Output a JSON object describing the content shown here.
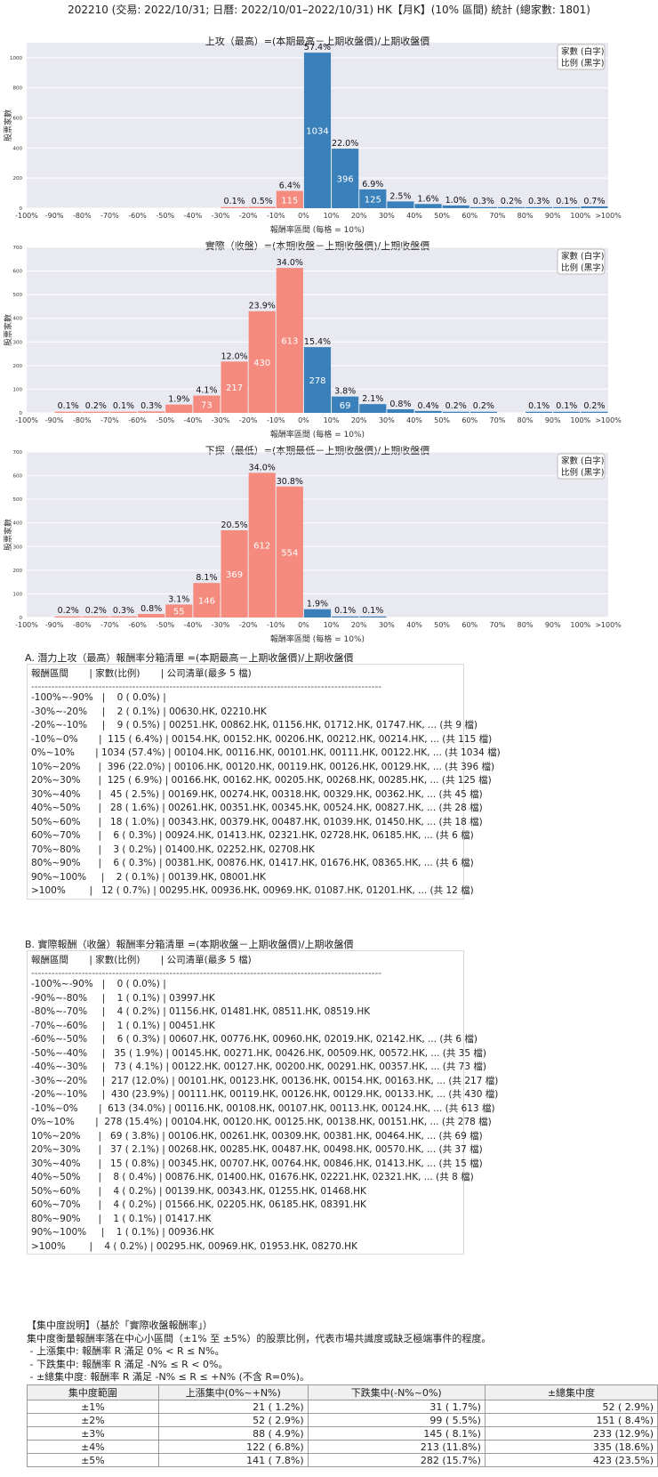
{
  "page_title": "202210 (交易: 2022/10/31; 日曆: 2022/10/01–2022/10/31) HK【月K】(10% 區間) 統計 (總家數: 1801)",
  "chart_data": [
    {
      "type": "bar",
      "title": "上攻（最高）=(本期最高－上期收盤價)/上期收盤價",
      "xlabel": "報酬率區間 (每格 = 10%)",
      "ylabel": "股票家數",
      "legend": [
        "家數 (白字)",
        "比例 (黑字)"
      ],
      "ylim": [
        0,
        1100
      ],
      "yticks": [
        0,
        200,
        400,
        600,
        800,
        1000
      ],
      "x_ticks": [
        "-100%",
        "-90%",
        "-80%",
        "-70%",
        "-60%",
        "-50%",
        "-40%",
        "-30%",
        "-20%",
        "-10%",
        "0%",
        "10%",
        "20%",
        "30%",
        "40%",
        "50%",
        "60%",
        "70%",
        "80%",
        "90%",
        "100%",
        ">100%"
      ],
      "counts": [
        0,
        0,
        0,
        0,
        0,
        0,
        0,
        2,
        9,
        115,
        1034,
        396,
        125,
        45,
        28,
        18,
        6,
        3,
        6,
        2,
        12
      ],
      "pcts": [
        "",
        "",
        "",
        "",
        "",
        "",
        "",
        "0.1%",
        "0.5%",
        "6.4%",
        "57.4%",
        "22.0%",
        "6.9%",
        "2.5%",
        "1.6%",
        "1.0%",
        "0.3%",
        "0.2%",
        "0.3%",
        "0.1%",
        "0.7%"
      ]
    },
    {
      "type": "bar",
      "title": "實際（收盤）=(本期收盤－上期收盤價)/上期收盤價",
      "xlabel": "報酬率區間 (每格 = 10%)",
      "ylabel": "股票家數",
      "legend": [
        "家數 (白字)",
        "比例 (黑字)"
      ],
      "ylim": [
        0,
        700
      ],
      "yticks": [
        0,
        100,
        200,
        300,
        400,
        500,
        600,
        700
      ],
      "x_ticks": [
        "-100%",
        "-90%",
        "-80%",
        "-70%",
        "-60%",
        "-50%",
        "-40%",
        "-30%",
        "-20%",
        "-10%",
        "0%",
        "10%",
        "20%",
        "30%",
        "40%",
        "50%",
        "60%",
        "70%",
        "80%",
        "90%",
        "100%",
        ">100%"
      ],
      "counts": [
        0,
        1,
        4,
        1,
        6,
        35,
        73,
        217,
        430,
        613,
        278,
        69,
        37,
        15,
        8,
        4,
        4,
        0,
        1,
        1,
        4
      ],
      "pcts": [
        "",
        "0.1%",
        "0.2%",
        "0.1%",
        "0.3%",
        "1.9%",
        "4.1%",
        "12.0%",
        "23.9%",
        "34.0%",
        "15.4%",
        "3.8%",
        "2.1%",
        "0.8%",
        "0.4%",
        "0.2%",
        "0.2%",
        "",
        "0.1%",
        "0.1%",
        "0.2%"
      ]
    },
    {
      "type": "bar",
      "title": "下探（最低）=(本期最低－上期收盤價)/上期收盤價",
      "xlabel": "報酬率區間 (每格 = 10%)",
      "ylabel": "股票家數",
      "legend": [
        "家數 (白字)",
        "比例 (黑字)"
      ],
      "ylim": [
        0,
        700
      ],
      "yticks": [
        0,
        100,
        200,
        300,
        400,
        500,
        600,
        700
      ],
      "x_ticks": [
        "-100%",
        "-90%",
        "-80%",
        "-70%",
        "-60%",
        "-50%",
        "-40%",
        "-30%",
        "-20%",
        "-10%",
        "0%",
        "10%",
        "20%",
        "30%",
        "40%",
        "50%",
        "60%",
        "70%",
        "80%",
        "90%",
        "100%",
        ">100%"
      ],
      "counts": [
        0,
        4,
        4,
        5,
        15,
        55,
        146,
        369,
        612,
        554,
        35,
        2,
        2,
        0,
        0,
        0,
        0,
        0,
        0,
        0,
        0
      ],
      "pcts": [
        "",
        "0.2%",
        "0.2%",
        "0.3%",
        "0.8%",
        "3.1%",
        "8.1%",
        "20.5%",
        "34.0%",
        "30.8%",
        "1.9%",
        "0.1%",
        "0.1%",
        "",
        "",
        "",
        "",
        "",
        "",
        "",
        ""
      ]
    }
  ],
  "section_a": {
    "title": "A. 潛力上攻（最高）報酬率分箱清單 =(本期最高－上期收盤價)/上期收盤價",
    "header": "報酬區間       | 家數(比例)       | 公司清單(最多 5 檔)",
    "separator": "--------------------------------------------------------------------------------------------------------",
    "rows": [
      "-100%~-90%   |    0 ( 0.0%) |",
      "-30%~-20%     |    2 ( 0.1%) | 00630.HK, 02210.HK",
      "-20%~-10%     |    9 ( 0.5%) | 00251.HK, 00862.HK, 01156.HK, 01712.HK, 01747.HK, ... (共 9 檔)",
      "-10%~0%       |  115 ( 6.4%) | 00154.HK, 00152.HK, 00206.HK, 00212.HK, 00214.HK, ... (共 115 檔)",
      "0%~10%       | 1034 (57.4%) | 00104.HK, 00116.HK, 00101.HK, 00111.HK, 00122.HK, ... (共 1034 檔)",
      "10%~20%      |  396 (22.0%) | 00106.HK, 00120.HK, 00119.HK, 00126.HK, 00129.HK, ... (共 396 檔)",
      "20%~30%      |  125 ( 6.9%) | 00166.HK, 00162.HK, 00205.HK, 00268.HK, 00285.HK, ... (共 125 檔)",
      "30%~40%      |   45 ( 2.5%) | 00169.HK, 00274.HK, 00318.HK, 00329.HK, 00362.HK, ... (共 45 檔)",
      "40%~50%      |   28 ( 1.6%) | 00261.HK, 00351.HK, 00345.HK, 00524.HK, 00827.HK, ... (共 28 檔)",
      "50%~60%      |   18 ( 1.0%) | 00343.HK, 00379.HK, 00487.HK, 01039.HK, 01450.HK, ... (共 18 檔)",
      "60%~70%      |    6 ( 0.3%) | 00924.HK, 01413.HK, 02321.HK, 02728.HK, 06185.HK, ... (共 6 檔)",
      "70%~80%      |    3 ( 0.2%) | 01400.HK, 02252.HK, 02708.HK",
      "80%~90%      |    6 ( 0.3%) | 00381.HK, 00876.HK, 01417.HK, 01676.HK, 08365.HK, ... (共 6 檔)",
      "90%~100%     |    2 ( 0.1%) | 00139.HK, 08001.HK",
      ">100%        |   12 ( 0.7%) | 00295.HK, 00936.HK, 00969.HK, 01087.HK, 01201.HK, ... (共 12 檔)"
    ]
  },
  "section_b": {
    "title": "B. 實際報酬（收盤）報酬率分箱清單 =(本期收盤－上期收盤價)/上期收盤價",
    "header": "報酬區間       | 家數(比例)       | 公司清單(最多 5 檔)",
    "separator": "--------------------------------------------------------------------------------------------------------",
    "rows": [
      "-100%~-90%   |    0 ( 0.0%) |",
      "-90%~-80%     |    1 ( 0.1%) | 03997.HK",
      "-80%~-70%     |    4 ( 0.2%) | 01156.HK, 01481.HK, 08511.HK, 08519.HK",
      "-70%~-60%     |    1 ( 0.1%) | 00451.HK",
      "-60%~-50%     |    6 ( 0.3%) | 00607.HK, 00776.HK, 00960.HK, 02019.HK, 02142.HK, ... (共 6 檔)",
      "-50%~-40%     |   35 ( 1.9%) | 00145.HK, 00271.HK, 00426.HK, 00509.HK, 00572.HK, ... (共 35 檔)",
      "-40%~-30%     |   73 ( 4.1%) | 00122.HK, 00127.HK, 00200.HK, 00291.HK, 00357.HK, ... (共 73 檔)",
      "-30%~-20%     |  217 (12.0%) | 00101.HK, 00123.HK, 00136.HK, 00154.HK, 00163.HK, ... (共 217 檔)",
      "-20%~-10%     |  430 (23.9%) | 00111.HK, 00119.HK, 00126.HK, 00129.HK, 00133.HK, ... (共 430 檔)",
      "-10%~0%       |  613 (34.0%) | 00116.HK, 00108.HK, 00107.HK, 00113.HK, 00124.HK, ... (共 613 檔)",
      "0%~10%       |  278 (15.4%) | 00104.HK, 00120.HK, 00125.HK, 00138.HK, 00151.HK, ... (共 278 檔)",
      "10%~20%      |   69 ( 3.8%) | 00106.HK, 00261.HK, 00309.HK, 00381.HK, 00464.HK, ... (共 69 檔)",
      "20%~30%      |   37 ( 2.1%) | 00268.HK, 00285.HK, 00487.HK, 00498.HK, 00570.HK, ... (共 37 檔)",
      "30%~40%      |   15 ( 0.8%) | 00345.HK, 00707.HK, 00764.HK, 00846.HK, 01413.HK, ... (共 15 檔)",
      "40%~50%      |    8 ( 0.4%) | 00876.HK, 01400.HK, 01676.HK, 02221.HK, 02321.HK, ... (共 8 檔)",
      "50%~60%      |    4 ( 0.2%) | 00139.HK, 00343.HK, 01255.HK, 01468.HK",
      "60%~70%      |    4 ( 0.2%) | 01566.HK, 02205.HK, 06185.HK, 08391.HK",
      "80%~90%      |    1 ( 0.1%) | 01417.HK",
      "90%~100%     |    1 ( 0.1%) | 00936.HK",
      ">100%        |    4 ( 0.2%) | 00295.HK, 00969.HK, 01953.HK, 08270.HK"
    ]
  },
  "concentration": {
    "lines": [
      "【集中度說明】（基於「實際收盤報酬率」）",
      "集中度衡量報酬率落在中心小區間（±1% 至 ±5%）的股票比例，代表市場共識度或缺乏極端事件的程度。",
      " - 上漲集中: 報酬率 R 滿足 0% < R ≤ N%。",
      " - 下跌集中: 報酬率 R 滿足 -N% ≤ R < 0%。",
      " - ±總集中度: 報酬率 R 滿足 -N% ≤ R ≤ +N% (不含 R=0%)。"
    ],
    "headers": [
      "集中度範圍",
      "上漲集中(0%~+N%)",
      "下跌集中(-N%~0%)",
      "±總集中度"
    ],
    "rows": [
      [
        "±1%",
        "21 ( 1.2%)",
        "31 ( 1.7%)",
        "52 ( 2.9%)"
      ],
      [
        "±2%",
        "52 ( 2.9%)",
        "99 ( 5.5%)",
        "151 ( 8.4%)"
      ],
      [
        "±3%",
        "88 ( 4.9%)",
        "145 ( 8.1%)",
        "233 (12.9%)"
      ],
      [
        "±4%",
        "122 ( 6.8%)",
        "213 (11.8%)",
        "335 (18.6%)"
      ],
      [
        "±5%",
        "141 ( 7.8%)",
        "282 (15.7%)",
        "423 (23.5%)"
      ]
    ]
  },
  "colors": {
    "positive": "#3a80ba",
    "negative": "#f58b7e",
    "plot_bg": "#e9e9f2"
  }
}
